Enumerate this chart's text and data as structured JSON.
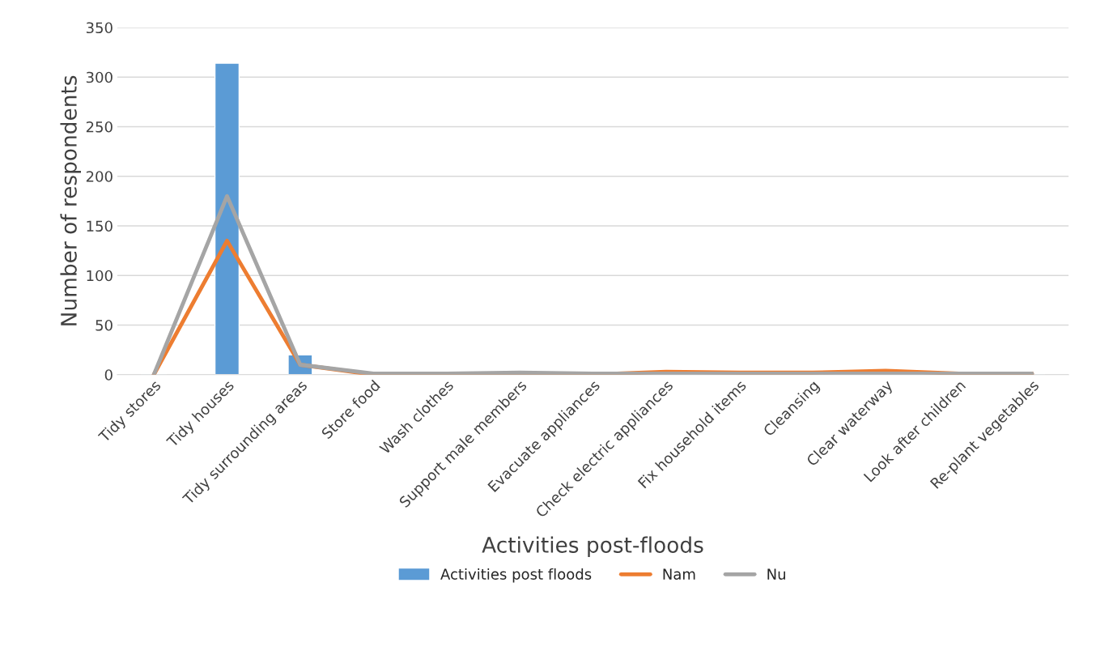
{
  "chart_data": {
    "type": "bar",
    "xlabel": "Activities post-floods",
    "ylabel": "Number of respondents",
    "categories": [
      "Tidy stores",
      "Tidy houses",
      "Tidy surrounding areas",
      "Store food",
      "Wash clothes",
      "Support male members",
      "Evacuate appliances",
      "Check electric appliances",
      "Fix household items",
      "Cleansing",
      "Clear waterway",
      "Look after children",
      "Re-plant vegetables"
    ],
    "series": [
      {
        "name": "Activities post floods",
        "color": "#5b9bd5",
        "values": [
          1,
          314,
          20,
          null,
          null,
          null,
          null,
          null,
          null,
          null,
          null,
          null,
          1
        ]
      },
      {
        "name": "Nam",
        "color": "#ed7d31",
        "type": "line",
        "values": [
          0,
          135,
          10,
          0,
          0,
          0,
          0,
          3,
          2,
          2,
          4,
          1,
          1
        ]
      },
      {
        "name": "Nu",
        "color": "#a5a5a5",
        "type": "line",
        "values": [
          0,
          180,
          10,
          1,
          1,
          2,
          1,
          1,
          1,
          1,
          1,
          1,
          1
        ]
      }
    ],
    "ylim": [
      0,
      350
    ],
    "yticks": [
      0,
      50,
      100,
      150,
      200,
      250,
      300,
      350
    ],
    "grid": "y",
    "legend": "bottom"
  }
}
